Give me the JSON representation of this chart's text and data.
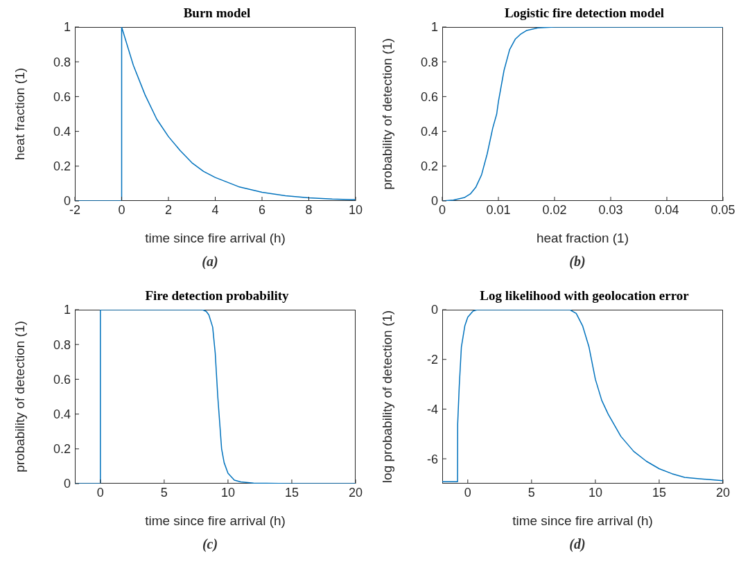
{
  "chart_data": [
    {
      "type": "line",
      "title": "Burn model",
      "xlabel": "time since fire arrival (h)",
      "ylabel": "heat fraction (1)",
      "annotations": [
        "(a)"
      ],
      "xlim": [
        -2,
        10
      ],
      "xticks": [
        -2,
        0,
        2,
        4,
        6,
        8,
        10
      ],
      "ylim": [
        0,
        1
      ],
      "yticks": [
        0,
        0.2,
        0.4,
        0.6,
        0.8,
        1
      ],
      "grid": false,
      "legend": false,
      "marker": "none",
      "line_style": "solid",
      "series": [
        {
          "color": "#0072bd",
          "x": [
            -2,
            0,
            0,
            0.5,
            1,
            1.5,
            2,
            2.5,
            3,
            3.5,
            4,
            5,
            6,
            7,
            8,
            9,
            10
          ],
          "values": [
            0,
            0,
            1,
            0.78,
            0.61,
            0.47,
            0.37,
            0.29,
            0.22,
            0.17,
            0.135,
            0.082,
            0.05,
            0.03,
            0.018,
            0.011,
            0.007
          ]
        }
      ]
    },
    {
      "type": "line",
      "title": "Logistic fire detection model",
      "xlabel": "heat fraction (1)",
      "ylabel": "probability of detection (1)",
      "annotations": [
        "(b)"
      ],
      "xlim": [
        0,
        0.05
      ],
      "xticks": [
        0,
        0.01,
        0.02,
        0.03,
        0.04,
        0.05
      ],
      "ylim": [
        0,
        1
      ],
      "yticks": [
        0,
        0.2,
        0.4,
        0.6,
        0.8,
        1
      ],
      "grid": false,
      "legend": false,
      "marker": "none",
      "line_style": "solid",
      "series": [
        {
          "color": "#0072bd",
          "x": [
            0,
            0.002,
            0.004,
            0.005,
            0.006,
            0.007,
            0.008,
            0.009,
            0.0097,
            0.01,
            0.011,
            0.012,
            0.013,
            0.014,
            0.015,
            0.017,
            0.02,
            0.03,
            0.04,
            0.05
          ],
          "values": [
            0,
            0.005,
            0.02,
            0.04,
            0.08,
            0.15,
            0.27,
            0.42,
            0.5,
            0.57,
            0.75,
            0.87,
            0.93,
            0.96,
            0.98,
            0.995,
            1,
            1,
            1,
            1
          ]
        }
      ]
    },
    {
      "type": "line",
      "title": "Fire detection probability",
      "xlabel": "time since fire arrival (h)",
      "ylabel": "probability of detection (1)",
      "annotations": [
        "(c)"
      ],
      "xlim": [
        -2,
        20
      ],
      "xticks": [
        0,
        5,
        10,
        15,
        20
      ],
      "ylim": [
        0,
        1
      ],
      "yticks": [
        0,
        0.2,
        0.4,
        0.6,
        0.8,
        1
      ],
      "grid": false,
      "legend": false,
      "marker": "none",
      "line_style": "solid",
      "series": [
        {
          "color": "#0072bd",
          "x": [
            -2,
            0,
            0,
            8,
            8.3,
            8.5,
            8.8,
            9,
            9.2,
            9.5,
            9.7,
            10,
            10.5,
            11,
            12,
            15,
            20
          ],
          "values": [
            0,
            0,
            1,
            1,
            0.99,
            0.97,
            0.9,
            0.75,
            0.5,
            0.2,
            0.12,
            0.06,
            0.02,
            0.01,
            0.003,
            0,
            0
          ]
        }
      ]
    },
    {
      "type": "line",
      "title": "Log likelihood with geolocation error",
      "xlabel": "time since fire arrival (h)",
      "ylabel": "log probability of detection (1)",
      "annotations": [
        "(d)"
      ],
      "xlim": [
        -2,
        20
      ],
      "xticks": [
        0,
        5,
        10,
        15,
        20
      ],
      "ylim": [
        -7,
        0
      ],
      "yticks": [
        -6,
        -4,
        -2,
        0
      ],
      "grid": false,
      "legend": false,
      "marker": "none",
      "line_style": "solid",
      "series": [
        {
          "color": "#0072bd",
          "x": [
            -2,
            -0.8,
            -0.79,
            -0.67,
            -0.5,
            -0.23,
            0,
            0.4,
            0.75,
            8,
            8.5,
            9,
            9.5,
            10,
            10.5,
            11,
            12,
            13,
            14,
            15,
            16,
            17,
            18,
            20
          ],
          "values": [
            -6.92,
            -6.92,
            -4.6,
            -3.1,
            -1.5,
            -0.65,
            -0.3,
            -0.06,
            0,
            0,
            -0.15,
            -0.65,
            -1.5,
            -2.8,
            -3.65,
            -4.2,
            -5.1,
            -5.7,
            -6.1,
            -6.4,
            -6.6,
            -6.75,
            -6.8,
            -6.88
          ]
        }
      ]
    }
  ]
}
